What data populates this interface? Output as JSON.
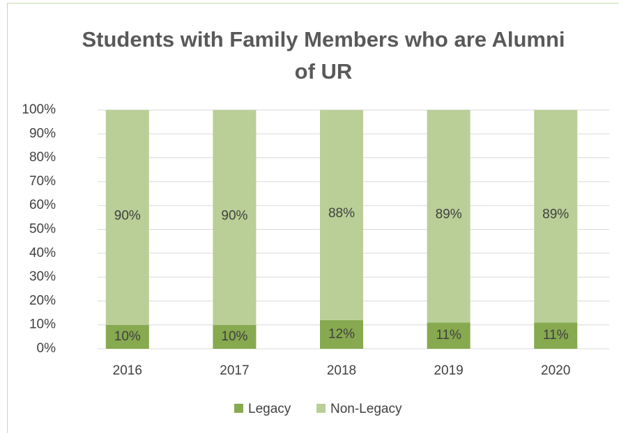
{
  "chart_data": {
    "type": "stacked_bar",
    "title": "Students with Family Members who are Alumni of UR",
    "categories": [
      "2016",
      "2017",
      "2018",
      "2019",
      "2020"
    ],
    "series": [
      {
        "name": "Legacy",
        "color": "#87a94f",
        "values": [
          10,
          10,
          12,
          11,
          11
        ],
        "value_labels": [
          "10%",
          "10%",
          "12%",
          "11%",
          "11%"
        ]
      },
      {
        "name": "Non-Legacy",
        "color": "#b9cf97",
        "values": [
          90,
          90,
          88,
          89,
          89
        ],
        "value_labels": [
          "90%",
          "90%",
          "88%",
          "89%",
          "89%"
        ]
      }
    ],
    "ylim": [
      0,
      100
    ],
    "yticks": [
      {
        "value": 0,
        "label": "0%"
      },
      {
        "value": 10,
        "label": "10%"
      },
      {
        "value": 20,
        "label": "20%"
      },
      {
        "value": 30,
        "label": "30%"
      },
      {
        "value": 40,
        "label": "40%"
      },
      {
        "value": 50,
        "label": "50%"
      },
      {
        "value": 60,
        "label": "60%"
      },
      {
        "value": 70,
        "label": "70%"
      },
      {
        "value": 80,
        "label": "80%"
      },
      {
        "value": 90,
        "label": "90%"
      },
      {
        "value": 100,
        "label": "100%"
      }
    ],
    "grid": true,
    "legend": "bottom"
  }
}
